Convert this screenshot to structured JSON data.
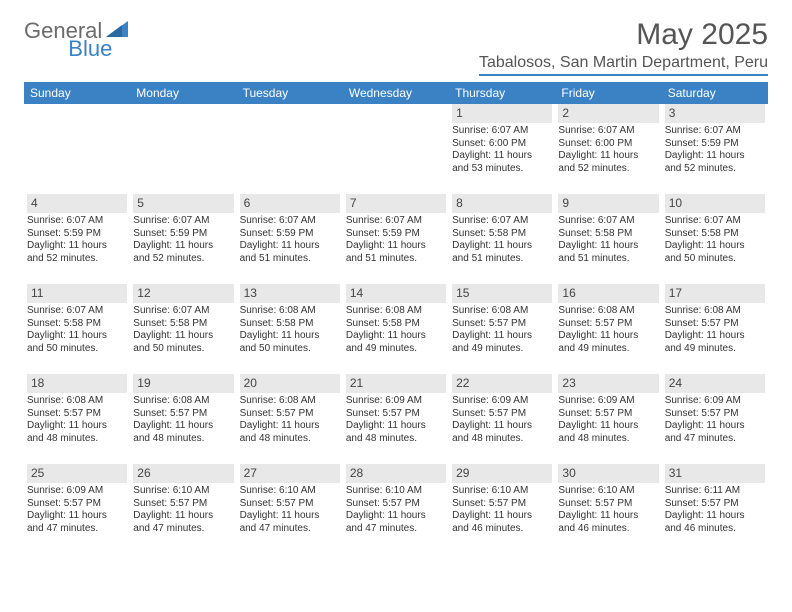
{
  "brand": {
    "part1": "General",
    "part2": "Blue"
  },
  "title": "May 2025",
  "location": "Tabalosos, San Martin Department, Peru",
  "colors": {
    "header_blue": "#3b82c4",
    "daynum_bg": "#e8e8e8",
    "text_gray": "#555555",
    "body_text": "#333333",
    "background": "#ffffff"
  },
  "day_headers": [
    "Sunday",
    "Monday",
    "Tuesday",
    "Wednesday",
    "Thursday",
    "Friday",
    "Saturday"
  ],
  "weeks": [
    [
      {
        "empty": true
      },
      {
        "empty": true
      },
      {
        "empty": true
      },
      {
        "empty": true
      },
      {
        "date": "1",
        "sunrise": "Sunrise: 6:07 AM",
        "sunset": "Sunset: 6:00 PM",
        "daylight1": "Daylight: 11 hours",
        "daylight2": "and 53 minutes."
      },
      {
        "date": "2",
        "sunrise": "Sunrise: 6:07 AM",
        "sunset": "Sunset: 6:00 PM",
        "daylight1": "Daylight: 11 hours",
        "daylight2": "and 52 minutes."
      },
      {
        "date": "3",
        "sunrise": "Sunrise: 6:07 AM",
        "sunset": "Sunset: 5:59 PM",
        "daylight1": "Daylight: 11 hours",
        "daylight2": "and 52 minutes."
      }
    ],
    [
      {
        "date": "4",
        "sunrise": "Sunrise: 6:07 AM",
        "sunset": "Sunset: 5:59 PM",
        "daylight1": "Daylight: 11 hours",
        "daylight2": "and 52 minutes."
      },
      {
        "date": "5",
        "sunrise": "Sunrise: 6:07 AM",
        "sunset": "Sunset: 5:59 PM",
        "daylight1": "Daylight: 11 hours",
        "daylight2": "and 52 minutes."
      },
      {
        "date": "6",
        "sunrise": "Sunrise: 6:07 AM",
        "sunset": "Sunset: 5:59 PM",
        "daylight1": "Daylight: 11 hours",
        "daylight2": "and 51 minutes."
      },
      {
        "date": "7",
        "sunrise": "Sunrise: 6:07 AM",
        "sunset": "Sunset: 5:59 PM",
        "daylight1": "Daylight: 11 hours",
        "daylight2": "and 51 minutes."
      },
      {
        "date": "8",
        "sunrise": "Sunrise: 6:07 AM",
        "sunset": "Sunset: 5:58 PM",
        "daylight1": "Daylight: 11 hours",
        "daylight2": "and 51 minutes."
      },
      {
        "date": "9",
        "sunrise": "Sunrise: 6:07 AM",
        "sunset": "Sunset: 5:58 PM",
        "daylight1": "Daylight: 11 hours",
        "daylight2": "and 51 minutes."
      },
      {
        "date": "10",
        "sunrise": "Sunrise: 6:07 AM",
        "sunset": "Sunset: 5:58 PM",
        "daylight1": "Daylight: 11 hours",
        "daylight2": "and 50 minutes."
      }
    ],
    [
      {
        "date": "11",
        "sunrise": "Sunrise: 6:07 AM",
        "sunset": "Sunset: 5:58 PM",
        "daylight1": "Daylight: 11 hours",
        "daylight2": "and 50 minutes."
      },
      {
        "date": "12",
        "sunrise": "Sunrise: 6:07 AM",
        "sunset": "Sunset: 5:58 PM",
        "daylight1": "Daylight: 11 hours",
        "daylight2": "and 50 minutes."
      },
      {
        "date": "13",
        "sunrise": "Sunrise: 6:08 AM",
        "sunset": "Sunset: 5:58 PM",
        "daylight1": "Daylight: 11 hours",
        "daylight2": "and 50 minutes."
      },
      {
        "date": "14",
        "sunrise": "Sunrise: 6:08 AM",
        "sunset": "Sunset: 5:58 PM",
        "daylight1": "Daylight: 11 hours",
        "daylight2": "and 49 minutes."
      },
      {
        "date": "15",
        "sunrise": "Sunrise: 6:08 AM",
        "sunset": "Sunset: 5:57 PM",
        "daylight1": "Daylight: 11 hours",
        "daylight2": "and 49 minutes."
      },
      {
        "date": "16",
        "sunrise": "Sunrise: 6:08 AM",
        "sunset": "Sunset: 5:57 PM",
        "daylight1": "Daylight: 11 hours",
        "daylight2": "and 49 minutes."
      },
      {
        "date": "17",
        "sunrise": "Sunrise: 6:08 AM",
        "sunset": "Sunset: 5:57 PM",
        "daylight1": "Daylight: 11 hours",
        "daylight2": "and 49 minutes."
      }
    ],
    [
      {
        "date": "18",
        "sunrise": "Sunrise: 6:08 AM",
        "sunset": "Sunset: 5:57 PM",
        "daylight1": "Daylight: 11 hours",
        "daylight2": "and 48 minutes."
      },
      {
        "date": "19",
        "sunrise": "Sunrise: 6:08 AM",
        "sunset": "Sunset: 5:57 PM",
        "daylight1": "Daylight: 11 hours",
        "daylight2": "and 48 minutes."
      },
      {
        "date": "20",
        "sunrise": "Sunrise: 6:08 AM",
        "sunset": "Sunset: 5:57 PM",
        "daylight1": "Daylight: 11 hours",
        "daylight2": "and 48 minutes."
      },
      {
        "date": "21",
        "sunrise": "Sunrise: 6:09 AM",
        "sunset": "Sunset: 5:57 PM",
        "daylight1": "Daylight: 11 hours",
        "daylight2": "and 48 minutes."
      },
      {
        "date": "22",
        "sunrise": "Sunrise: 6:09 AM",
        "sunset": "Sunset: 5:57 PM",
        "daylight1": "Daylight: 11 hours",
        "daylight2": "and 48 minutes."
      },
      {
        "date": "23",
        "sunrise": "Sunrise: 6:09 AM",
        "sunset": "Sunset: 5:57 PM",
        "daylight1": "Daylight: 11 hours",
        "daylight2": "and 48 minutes."
      },
      {
        "date": "24",
        "sunrise": "Sunrise: 6:09 AM",
        "sunset": "Sunset: 5:57 PM",
        "daylight1": "Daylight: 11 hours",
        "daylight2": "and 47 minutes."
      }
    ],
    [
      {
        "date": "25",
        "sunrise": "Sunrise: 6:09 AM",
        "sunset": "Sunset: 5:57 PM",
        "daylight1": "Daylight: 11 hours",
        "daylight2": "and 47 minutes."
      },
      {
        "date": "26",
        "sunrise": "Sunrise: 6:10 AM",
        "sunset": "Sunset: 5:57 PM",
        "daylight1": "Daylight: 11 hours",
        "daylight2": "and 47 minutes."
      },
      {
        "date": "27",
        "sunrise": "Sunrise: 6:10 AM",
        "sunset": "Sunset: 5:57 PM",
        "daylight1": "Daylight: 11 hours",
        "daylight2": "and 47 minutes."
      },
      {
        "date": "28",
        "sunrise": "Sunrise: 6:10 AM",
        "sunset": "Sunset: 5:57 PM",
        "daylight1": "Daylight: 11 hours",
        "daylight2": "and 47 minutes."
      },
      {
        "date": "29",
        "sunrise": "Sunrise: 6:10 AM",
        "sunset": "Sunset: 5:57 PM",
        "daylight1": "Daylight: 11 hours",
        "daylight2": "and 46 minutes."
      },
      {
        "date": "30",
        "sunrise": "Sunrise: 6:10 AM",
        "sunset": "Sunset: 5:57 PM",
        "daylight1": "Daylight: 11 hours",
        "daylight2": "and 46 minutes."
      },
      {
        "date": "31",
        "sunrise": "Sunrise: 6:11 AM",
        "sunset": "Sunset: 5:57 PM",
        "daylight1": "Daylight: 11 hours",
        "daylight2": "and 46 minutes."
      }
    ]
  ]
}
